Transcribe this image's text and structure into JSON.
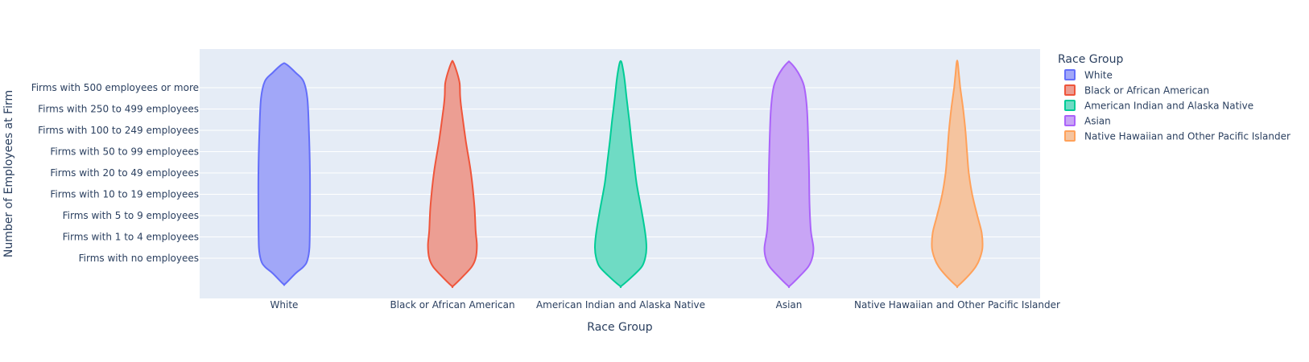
{
  "chart_data": {
    "type": "violin",
    "xlabel": "Race Group",
    "ylabel": "Number of Employees at Firm",
    "categories": [
      "White",
      "Black or African American",
      "American Indian and Alaska Native",
      "Asian",
      "Native Hawaiian and Other Pacific Islander"
    ],
    "y_categories": [
      "Firms with no employees",
      "Firms with 1 to 4 employees",
      "Firms with 5 to 9 employees",
      "Firms with 10 to 19 employees",
      "Firms with 20 to 49 employees",
      "Firms with 50 to 99 employees",
      "Firms with 100 to 249 employees",
      "Firms with 250 to 499 employees",
      "Firms with 500 employees or more"
    ],
    "series": [
      {
        "name": "White",
        "color": "#636efa",
        "fill": "#a1a7f8",
        "y_range": [
          -1.2,
          9.1
        ],
        "density": [
          [
            -1.2,
            0.04
          ],
          [
            -0.7,
            0.45
          ],
          [
            -0.4,
            0.75
          ],
          [
            -0.1,
            0.9
          ],
          [
            0.5,
            0.98
          ],
          [
            2,
            1.0
          ],
          [
            4,
            1.0
          ],
          [
            6,
            0.96
          ],
          [
            7.5,
            0.9
          ],
          [
            8.3,
            0.75
          ],
          [
            8.7,
            0.45
          ],
          [
            9.1,
            0.08
          ]
        ]
      },
      {
        "name": "Black or African American",
        "color": "#ef553b",
        "fill": "#ec9e93",
        "y_range": [
          -1.3,
          9.2
        ],
        "density": [
          [
            -1.3,
            0.03
          ],
          [
            -0.8,
            0.45
          ],
          [
            -0.4,
            0.75
          ],
          [
            0,
            0.9
          ],
          [
            0.6,
            0.95
          ],
          [
            1.3,
            0.9
          ],
          [
            2.5,
            0.85
          ],
          [
            4,
            0.72
          ],
          [
            5.5,
            0.52
          ],
          [
            7,
            0.35
          ],
          [
            7.6,
            0.3
          ],
          [
            8.2,
            0.28
          ],
          [
            8.7,
            0.18
          ],
          [
            9.2,
            0.03
          ]
        ]
      },
      {
        "name": "American Indian and Alaska Native",
        "color": "#00cc96",
        "fill": "#6fdbc4",
        "y_range": [
          -1.3,
          9.2
        ],
        "density": [
          [
            -1.3,
            0.03
          ],
          [
            -0.8,
            0.5
          ],
          [
            -0.4,
            0.82
          ],
          [
            0,
            0.95
          ],
          [
            0.5,
            1.0
          ],
          [
            1.2,
            0.95
          ],
          [
            2.3,
            0.8
          ],
          [
            3.5,
            0.62
          ],
          [
            4.5,
            0.52
          ],
          [
            5.5,
            0.42
          ],
          [
            6.5,
            0.33
          ],
          [
            7.5,
            0.23
          ],
          [
            8.3,
            0.16
          ],
          [
            8.8,
            0.1
          ],
          [
            9.2,
            0.03
          ]
        ]
      },
      {
        "name": "Asian",
        "color": "#ab63fa",
        "fill": "#c8a5f5",
        "y_range": [
          -1.3,
          9.2
        ],
        "density": [
          [
            -1.3,
            0.03
          ],
          [
            -0.8,
            0.45
          ],
          [
            -0.4,
            0.75
          ],
          [
            0,
            0.9
          ],
          [
            0.5,
            0.95
          ],
          [
            1.3,
            0.85
          ],
          [
            2.5,
            0.8
          ],
          [
            4,
            0.78
          ],
          [
            5.5,
            0.75
          ],
          [
            7,
            0.7
          ],
          [
            8,
            0.6
          ],
          [
            8.5,
            0.45
          ],
          [
            8.9,
            0.25
          ],
          [
            9.2,
            0.03
          ]
        ]
      },
      {
        "name": "Native Hawaiian and Other Pacific Islander",
        "color": "#ffa15a",
        "fill": "#f5c49f",
        "y_range": [
          -1.3,
          9.2
        ],
        "density": [
          [
            -1.3,
            0.03
          ],
          [
            -0.8,
            0.45
          ],
          [
            -0.4,
            0.72
          ],
          [
            0,
            0.88
          ],
          [
            0.5,
            0.98
          ],
          [
            1.2,
            0.95
          ],
          [
            2,
            0.78
          ],
          [
            3,
            0.58
          ],
          [
            4,
            0.45
          ],
          [
            5,
            0.38
          ],
          [
            6,
            0.32
          ],
          [
            7,
            0.23
          ],
          [
            8,
            0.12
          ],
          [
            8.6,
            0.07
          ],
          [
            9.2,
            0.02
          ]
        ]
      }
    ],
    "legend_title": "Race Group",
    "legend_position": "right",
    "grid": true,
    "plot_background": "#e5ecf6"
  }
}
